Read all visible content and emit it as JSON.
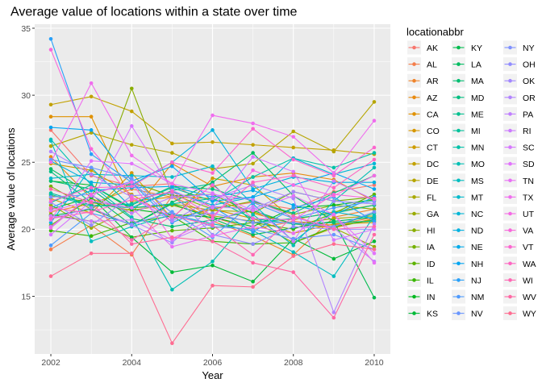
{
  "chart_data": {
    "type": "line",
    "title": "Average value of locations within a state over time",
    "xlabel": "Year",
    "ylabel": "Average value of locations",
    "xlim": [
      2001.6,
      2010.4
    ],
    "ylim": [
      10.7,
      35.3
    ],
    "x_ticks": [
      2002,
      2004,
      2006,
      2008,
      2010
    ],
    "y_ticks": [
      15,
      20,
      25,
      30,
      35
    ],
    "grid": true,
    "markers": true,
    "legend_title": "locationabbr",
    "legend_position": "right",
    "x": [
      2002,
      2003,
      2004,
      2005,
      2006,
      2007,
      2008,
      2009,
      2010
    ],
    "series": [
      {
        "name": "AK",
        "color": "#F8766D",
        "values": [
          27.4,
          24.0,
          23.2,
          23.4,
          21.6,
          22.0,
          21.5,
          22.8,
          23.3
        ]
      },
      {
        "name": "AL",
        "color": "#F47D4A",
        "values": [
          18.5,
          20.3,
          18.1,
          22.5,
          20.9,
          20.0,
          20.6,
          20.3,
          20.9
        ]
      },
      {
        "name": "AR",
        "color": "#EF842C",
        "values": [
          21.3,
          21.9,
          23.0,
          22.4,
          20.6,
          19.5,
          18.1,
          20.9,
          21.5
        ]
      },
      {
        "name": "AZ",
        "color": "#E88A10",
        "values": [
          25.4,
          22.3,
          21.2,
          24.9,
          23.2,
          23.9,
          24.2,
          23.7,
          22.1
        ]
      },
      {
        "name": "CA",
        "color": "#E09100",
        "values": [
          28.4,
          28.4,
          22.1,
          22.4,
          22.3,
          21.2,
          20.4,
          20.1,
          20.8
        ]
      },
      {
        "name": "CO",
        "color": "#D79700",
        "values": [
          22.3,
          21.2,
          24.2,
          20.8,
          21.5,
          20.8,
          19.7,
          20.4,
          20.5
        ]
      },
      {
        "name": "CT",
        "color": "#CD9C00",
        "values": [
          24.9,
          24.4,
          22.6,
          20.8,
          23.8,
          23.3,
          20.7,
          21.3,
          21.8
        ]
      },
      {
        "name": "DC",
        "color": "#C2A100",
        "values": [
          29.3,
          29.9,
          28.8,
          26.4,
          26.5,
          26.3,
          26.1,
          25.9,
          25.6
        ]
      },
      {
        "name": "DE",
        "color": "#B6A500",
        "values": [
          26.2,
          27.2,
          26.3,
          25.7,
          24.5,
          24.9,
          27.3,
          25.8,
          29.5
        ]
      },
      {
        "name": "FL",
        "color": "#A8A800",
        "values": [
          22.5,
          22.0,
          21.4,
          21.9,
          21.4,
          21.3,
          20.4,
          20.8,
          21.0
        ]
      },
      {
        "name": "GA",
        "color": "#99AB00",
        "values": [
          21.8,
          20.1,
          21.6,
          21.8,
          21.0,
          20.6,
          19.0,
          20.1,
          18.7
        ]
      },
      {
        "name": "HI",
        "color": "#88AD00",
        "values": [
          20.3,
          22.3,
          30.5,
          22.6,
          21.5,
          22.1,
          21.1,
          21.8,
          21.5
        ]
      },
      {
        "name": "IA",
        "color": "#74B000",
        "values": [
          23.2,
          21.5,
          23.5,
          22.5,
          22.6,
          21.2,
          22.8,
          22.1,
          22.4
        ]
      },
      {
        "name": "ID",
        "color": "#5CB200",
        "values": [
          21.1,
          20.6,
          19.4,
          19.9,
          20.1,
          20.5,
          20.0,
          21.2,
          22.6
        ]
      },
      {
        "name": "IL",
        "color": "#39B600",
        "values": [
          19.9,
          19.5,
          20.5,
          21.0,
          19.1,
          18.9,
          19.0,
          20.2,
          20.7
        ]
      },
      {
        "name": "IN",
        "color": "#00B81F",
        "values": [
          23.6,
          23.3,
          21.5,
          21.1,
          20.9,
          20.2,
          21.6,
          21.8,
          22.2
        ]
      },
      {
        "name": "KS",
        "color": "#00BA38",
        "values": [
          21.5,
          22.4,
          19.4,
          16.8,
          17.3,
          16.1,
          19.3,
          17.8,
          19.1
        ]
      },
      {
        "name": "KY",
        "color": "#00BB4E",
        "values": [
          21.0,
          21.5,
          20.3,
          21.9,
          20.8,
          19.6,
          20.1,
          20.6,
          14.9
        ]
      },
      {
        "name": "LA",
        "color": "#00BC60",
        "values": [
          24.5,
          22.6,
          20.3,
          22.0,
          23.5,
          25.7,
          22.5,
          20.6,
          20.9
        ]
      },
      {
        "name": "MA",
        "color": "#00BD71",
        "values": [
          23.6,
          23.0,
          20.8,
          20.2,
          20.7,
          21.4,
          20.4,
          20.5,
          20.6
        ]
      },
      {
        "name": "MD",
        "color": "#00BE80",
        "values": [
          24.3,
          22.0,
          21.8,
          23.2,
          23.0,
          22.1,
          21.2,
          22.7,
          24.0
        ]
      },
      {
        "name": "ME",
        "color": "#00C08E",
        "values": [
          22.0,
          23.3,
          21.6,
          22.9,
          23.4,
          20.5,
          20.8,
          21.2,
          21.8
        ]
      },
      {
        "name": "MI",
        "color": "#00C19B",
        "values": [
          22.7,
          21.8,
          21.6,
          21.9,
          22.3,
          20.8,
          20.4,
          20.2,
          21.2
        ]
      },
      {
        "name": "MN",
        "color": "#00C1A8",
        "values": [
          22.6,
          21.7,
          21.9,
          23.1,
          22.1,
          23.9,
          25.3,
          24.6,
          25.7
        ]
      },
      {
        "name": "MO",
        "color": "#00BFB4",
        "values": [
          26.7,
          23.3,
          20.9,
          15.5,
          17.6,
          21.1,
          18.8,
          22.1,
          24.6
        ]
      },
      {
        "name": "MS",
        "color": "#00BDC0",
        "values": [
          26.6,
          19.1,
          20.2,
          21.1,
          20.4,
          19.9,
          18.3,
          16.5,
          21.0
        ]
      },
      {
        "name": "MT",
        "color": "#00BACB",
        "values": [
          23.8,
          24.1,
          24.0,
          23.9,
          24.7,
          21.9,
          19.1,
          21.3,
          20.8
        ]
      },
      {
        "name": "NC",
        "color": "#00B6D6",
        "values": [
          20.5,
          24.6,
          21.6,
          22.8,
          21.8,
          22.4,
          25.3,
          24.1,
          24.9
        ]
      },
      {
        "name": "ND",
        "color": "#00B1E0",
        "values": [
          25.1,
          23.5,
          23.3,
          25.0,
          27.4,
          23.0,
          23.9,
          23.5,
          23.5
        ]
      },
      {
        "name": "NE",
        "color": "#00ABEA",
        "values": [
          21.6,
          22.9,
          23.1,
          23.2,
          22.4,
          22.9,
          21.8,
          21.1,
          22.4
        ]
      },
      {
        "name": "NH",
        "color": "#00A5F2",
        "values": [
          27.6,
          27.4,
          23.6,
          24.7,
          22.1,
          22.4,
          23.3,
          24.2,
          23.0
        ]
      },
      {
        "name": "NJ",
        "color": "#28A0F9",
        "values": [
          34.2,
          25.6,
          23.5,
          20.5,
          21.7,
          19.8,
          21.6,
          22.4,
          20.6
        ]
      },
      {
        "name": "NM",
        "color": "#4E9BFE",
        "values": [
          18.8,
          21.2,
          20.4,
          21.3,
          19.4,
          22.0,
          20.8,
          21.6,
          22.1
        ]
      },
      {
        "name": "NV",
        "color": "#6996FF",
        "values": [
          25.2,
          24.6,
          23.8,
          21.2,
          20.2,
          20.0,
          19.3,
          19.6,
          18.5
        ]
      },
      {
        "name": "NY",
        "color": "#7F91FF",
        "values": [
          22.4,
          22.6,
          23.6,
          20.8,
          21.2,
          20.5,
          20.5,
          20.2,
          21.3
        ]
      },
      {
        "name": "OH",
        "color": "#918CFF",
        "values": [
          22.0,
          20.3,
          22.5,
          22.7,
          19.6,
          18.9,
          20.2,
          20.0,
          20.0
        ]
      },
      {
        "name": "OK",
        "color": "#A287FF",
        "values": [
          20.8,
          21.6,
          20.3,
          19.0,
          21.7,
          21.5,
          22.8,
          22.1,
          21.9
        ]
      },
      {
        "name": "OR",
        "color": "#B284FF",
        "values": [
          25.8,
          24.1,
          22.4,
          20.6,
          22.3,
          23.3,
          22.3,
          13.8,
          20.4
        ]
      },
      {
        "name": "PA",
        "color": "#C07FFF",
        "values": [
          20.2,
          22.5,
          21.2,
          22.4,
          22.6,
          22.2,
          20.9,
          20.1,
          17.6
        ]
      },
      {
        "name": "RI",
        "color": "#CC7BFF",
        "values": [
          21.0,
          20.6,
          20.7,
          19.2,
          20.5,
          21.7,
          19.1,
          23.6,
          22.2
        ]
      },
      {
        "name": "SC",
        "color": "#D777FF",
        "values": [
          19.6,
          22.1,
          27.7,
          22.9,
          21.6,
          25.4,
          24.3,
          19.2,
          20.0
        ]
      },
      {
        "name": "SD",
        "color": "#E173FC",
        "values": [
          20.7,
          25.1,
          24.9,
          23.4,
          22.7,
          21.4,
          22.5,
          21.1,
          18.2
        ]
      },
      {
        "name": "TN",
        "color": "#E970F5",
        "values": [
          21.4,
          22.1,
          21.6,
          18.7,
          19.5,
          20.2,
          19.7,
          21.1,
          17.5
        ]
      },
      {
        "name": "TX",
        "color": "#F06DEE",
        "values": [
          25.0,
          30.9,
          25.5,
          23.4,
          28.5,
          27.9,
          26.9,
          24.2,
          28.1
        ]
      },
      {
        "name": "UT",
        "color": "#F56AE5",
        "values": [
          20.1,
          22.6,
          23.5,
          19.3,
          20.8,
          24.4,
          23.3,
          22.5,
          24.0
        ]
      },
      {
        "name": "VA",
        "color": "#F967DB",
        "values": [
          33.4,
          26.0,
          22.4,
          20.9,
          23.3,
          20.8,
          20.7,
          22.6,
          22.3
        ]
      },
      {
        "name": "VT",
        "color": "#FC66CF",
        "values": [
          22.1,
          23.1,
          23.2,
          25.0,
          24.2,
          27.5,
          25.2,
          24.0,
          26.1
        ]
      },
      {
        "name": "WA",
        "color": "#FE66C2",
        "values": [
          20.8,
          21.3,
          22.2,
          22.8,
          21.0,
          23.5,
          24.0,
          23.1,
          25.2
        ]
      },
      {
        "name": "WI",
        "color": "#FF67B3",
        "values": [
          21.6,
          21.2,
          19.2,
          21.0,
          20.3,
          18.1,
          21.0,
          20.0,
          20.2
        ]
      },
      {
        "name": "WV",
        "color": "#FF68A4",
        "values": [
          23.0,
          22.0,
          18.9,
          19.4,
          19.1,
          17.5,
          16.8,
          13.4,
          19.6
        ]
      },
      {
        "name": "WY",
        "color": "#FF6C91",
        "values": [
          16.5,
          18.2,
          18.2,
          11.5,
          15.8,
          15.7,
          18.0,
          18.9,
          18.5
        ]
      }
    ]
  },
  "colors": {
    "panel_background": "#EBEBEB",
    "grid_major": "#FFFFFF",
    "legend_key_background": "#F2F2F2"
  }
}
